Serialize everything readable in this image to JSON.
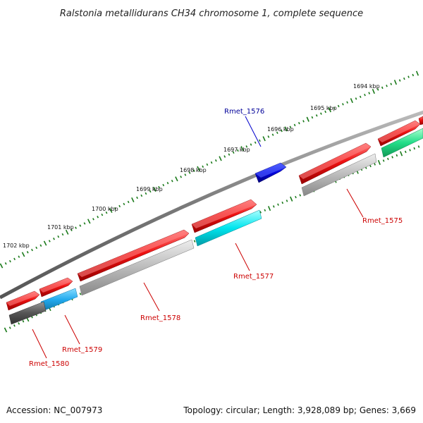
{
  "title": "Ralstonia metallidurans CH34 chromosome 1, complete sequence",
  "footer": {
    "accession": "Accession: NC_007973",
    "topology": "Topology: circular; Length: 3,928,089 bp; Genes: 3,669"
  },
  "ticks": [
    "1694 kbp",
    "1695 kbp",
    "1696 kbp",
    "1697 kbp",
    "1698 kbp",
    "1699 kbp",
    "1700 kbp",
    "1701 kbp",
    "1702 kbp"
  ],
  "gene_labels": {
    "g1576": "Rmet_1576",
    "g1575": "Rmet_1575",
    "g1577": "Rmet_1577",
    "g1578": "Rmet_1578",
    "g1579": "Rmet_1579",
    "g1580": "Rmet_1580"
  },
  "colors": {
    "backbone": "#7a7a7a",
    "cds": "#ee1111",
    "highlight": "#0000cc",
    "label_red": "#cc0000",
    "label_blue": "#000099",
    "tick": "#1a7a1a",
    "cyan": "#00e5ee",
    "blue_cog": "#22aaee",
    "green_cog": "#22dd88",
    "grey_cog": "#bbbbbb",
    "dark_cog": "#555555"
  }
}
